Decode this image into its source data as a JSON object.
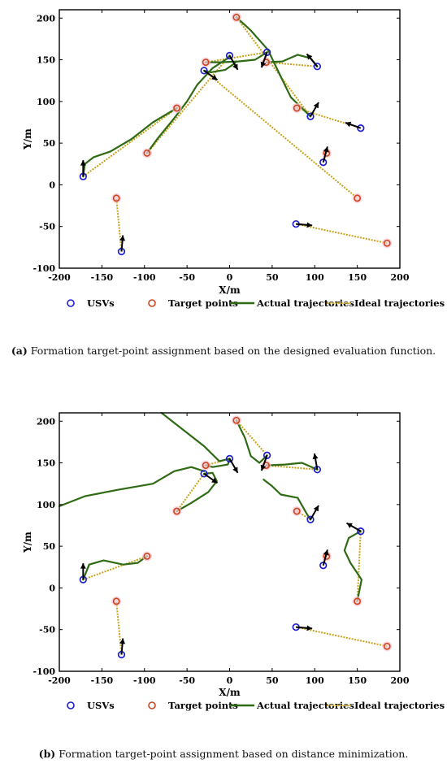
{
  "chart_data": [
    {
      "type": "scatter",
      "xlabel": "X/m",
      "ylabel": "Y/m",
      "xlim": [
        -200,
        200
      ],
      "ylim": [
        -100,
        210
      ],
      "xticks": [
        -200,
        -150,
        -100,
        -50,
        0,
        50,
        100,
        150,
        200
      ],
      "yticks": [
        -100,
        -50,
        0,
        50,
        100,
        150,
        200
      ],
      "legend": [
        "USVs",
        "Target points",
        "Actual trajectories",
        "Ideal trajectories"
      ],
      "caption_letter": "(a)",
      "caption_text": " Formation target-point assignment based on the designed evaluation function.",
      "usvs": [
        [
          -172,
          10
        ],
        [
          -127,
          -80
        ],
        [
          -30,
          137
        ],
        [
          0,
          155
        ],
        [
          44,
          159
        ],
        [
          95,
          82
        ],
        [
          103,
          142
        ],
        [
          110,
          27
        ],
        [
          154,
          68
        ],
        [
          78,
          -47
        ]
      ],
      "targets": [
        [
          -133,
          -16
        ],
        [
          -97,
          38
        ],
        [
          -62,
          92
        ],
        [
          -28,
          147
        ],
        [
          8,
          201
        ],
        [
          43,
          147
        ],
        [
          79,
          92
        ],
        [
          114,
          38
        ],
        [
          150,
          -16
        ],
        [
          185,
          -70
        ]
      ],
      "ideal_lines": [
        [
          [
            -172,
            10
          ],
          [
            -62,
            92
          ]
        ],
        [
          [
            -127,
            -80
          ],
          [
            -133,
            -16
          ]
        ],
        [
          [
            -97,
            38
          ],
          [
            0,
            155
          ]
        ],
        [
          [
            -28,
            147
          ],
          [
            44,
            159
          ]
        ],
        [
          [
            8,
            201
          ],
          [
            95,
            82
          ]
        ],
        [
          [
            -30,
            137
          ],
          [
            150,
            -16
          ]
        ],
        [
          [
            103,
            142
          ],
          [
            43,
            147
          ]
        ],
        [
          [
            154,
            68
          ],
          [
            79,
            92
          ]
        ],
        [
          [
            110,
            27
          ],
          [
            114,
            38
          ]
        ],
        [
          [
            78,
            -47
          ],
          [
            185,
            -70
          ]
        ]
      ],
      "actual_paths": [
        [
          [
            -172,
            10
          ],
          [
            -170,
            25
          ],
          [
            -160,
            33
          ],
          [
            -140,
            40
          ],
          [
            -115,
            55
          ],
          [
            -90,
            75
          ],
          [
            -62,
            92
          ]
        ],
        [
          [
            -97,
            38
          ],
          [
            -85,
            55
          ],
          [
            -65,
            80
          ],
          [
            -50,
            100
          ],
          [
            -38,
            120
          ],
          [
            -20,
            140
          ],
          [
            -2,
            152
          ],
          [
            0,
            155
          ]
        ],
        [
          [
            -28,
            147
          ],
          [
            -10,
            147
          ],
          [
            10,
            148
          ],
          [
            30,
            150
          ],
          [
            44,
            159
          ]
        ],
        [
          [
            8,
            201
          ],
          [
            25,
            185
          ],
          [
            45,
            162
          ],
          [
            60,
            130
          ],
          [
            72,
            105
          ],
          [
            95,
            82
          ]
        ],
        [
          [
            103,
            142
          ],
          [
            95,
            152
          ],
          [
            80,
            156
          ],
          [
            62,
            148
          ],
          [
            43,
            147
          ]
        ],
        [
          [
            -30,
            137
          ],
          [
            -22,
            135
          ],
          [
            -5,
            138
          ],
          [
            5,
            145
          ],
          [
            8,
            148
          ]
        ]
      ],
      "arrows": [
        [
          -172,
          10,
          90
        ],
        [
          -127,
          -80,
          85
        ],
        [
          -30,
          137,
          -35
        ],
        [
          0,
          155,
          -60
        ],
        [
          44,
          159,
          -110
        ],
        [
          95,
          82,
          60
        ],
        [
          103,
          142,
          130
        ],
        [
          110,
          27,
          75
        ],
        [
          154,
          68,
          160
        ],
        [
          78,
          -47,
          -5
        ]
      ]
    },
    {
      "type": "scatter",
      "xlabel": "X/m",
      "ylabel": "Y/m",
      "xlim": [
        -200,
        200
      ],
      "ylim": [
        -100,
        210
      ],
      "xticks": [
        -200,
        -150,
        -100,
        -50,
        0,
        50,
        100,
        150,
        200
      ],
      "yticks": [
        -100,
        -50,
        0,
        50,
        100,
        150,
        200
      ],
      "legend": [
        "USVs",
        "Target points",
        "Actual trajectories",
        "Ideal trajectories"
      ],
      "caption_letter": "(b)",
      "caption_text": " Formation target-point assignment based on distance minimization.",
      "usvs": [
        [
          -172,
          10
        ],
        [
          -127,
          -80
        ],
        [
          -30,
          137
        ],
        [
          0,
          155
        ],
        [
          44,
          159
        ],
        [
          95,
          82
        ],
        [
          103,
          142
        ],
        [
          110,
          27
        ],
        [
          154,
          68
        ],
        [
          78,
          -47
        ]
      ],
      "targets": [
        [
          -133,
          -16
        ],
        [
          -97,
          38
        ],
        [
          -62,
          92
        ],
        [
          -28,
          147
        ],
        [
          8,
          201
        ],
        [
          43,
          147
        ],
        [
          79,
          92
        ],
        [
          114,
          38
        ],
        [
          150,
          -16
        ],
        [
          185,
          -70
        ]
      ],
      "ideal_lines": [
        [
          [
            -172,
            10
          ],
          [
            -97,
            38
          ]
        ],
        [
          [
            -127,
            -80
          ],
          [
            -133,
            -16
          ]
        ],
        [
          [
            -30,
            137
          ],
          [
            -62,
            92
          ]
        ],
        [
          [
            0,
            155
          ],
          [
            -28,
            147
          ]
        ],
        [
          [
            8,
            201
          ],
          [
            44,
            159
          ]
        ],
        [
          [
            43,
            147
          ],
          [
            103,
            142
          ]
        ],
        [
          [
            95,
            82
          ],
          [
            79,
            92
          ]
        ],
        [
          [
            110,
            27
          ],
          [
            114,
            38
          ]
        ],
        [
          [
            154,
            68
          ],
          [
            150,
            -16
          ]
        ],
        [
          [
            78,
            -47
          ],
          [
            185,
            -70
          ]
        ]
      ],
      "actual_paths": [
        [
          [
            -172,
            10
          ],
          [
            -165,
            28
          ],
          [
            -148,
            33
          ],
          [
            -125,
            28
          ],
          [
            -108,
            30
          ],
          [
            -97,
            38
          ]
        ],
        [
          [
            -200,
            98
          ],
          [
            -170,
            110
          ],
          [
            -130,
            118
          ],
          [
            -90,
            125
          ],
          [
            -65,
            140
          ],
          [
            -45,
            145
          ],
          [
            -30,
            140
          ]
        ],
        [
          [
            -80,
            210
          ],
          [
            -55,
            190
          ],
          [
            -30,
            170
          ],
          [
            -12,
            152
          ],
          [
            0,
            155
          ]
        ],
        [
          [
            0,
            155
          ],
          [
            -2,
            148
          ],
          [
            -20,
            145
          ],
          [
            -28,
            147
          ]
        ],
        [
          [
            -30,
            137
          ],
          [
            -20,
            138
          ],
          [
            -15,
            128
          ],
          [
            -25,
            115
          ],
          [
            -45,
            102
          ],
          [
            -62,
            92
          ]
        ],
        [
          [
            8,
            201
          ],
          [
            18,
            180
          ],
          [
            25,
            158
          ],
          [
            35,
            150
          ],
          [
            44,
            159
          ]
        ],
        [
          [
            40,
            130
          ],
          [
            50,
            122
          ],
          [
            60,
            112
          ],
          [
            80,
            108
          ],
          [
            90,
            90
          ],
          [
            95,
            82
          ]
        ],
        [
          [
            43,
            147
          ],
          [
            65,
            148
          ],
          [
            85,
            150
          ],
          [
            103,
            142
          ]
        ],
        [
          [
            154,
            68
          ],
          [
            140,
            60
          ],
          [
            135,
            45
          ],
          [
            142,
            30
          ],
          [
            155,
            10
          ],
          [
            150,
            -16
          ]
        ]
      ],
      "arrows": [
        [
          -172,
          10,
          90
        ],
        [
          -127,
          -80,
          85
        ],
        [
          -30,
          137,
          -35
        ],
        [
          0,
          155,
          -60
        ],
        [
          44,
          159,
          -110
        ],
        [
          95,
          82,
          60
        ],
        [
          103,
          142,
          100
        ],
        [
          110,
          27,
          75
        ],
        [
          154,
          68,
          150
        ],
        [
          78,
          -47,
          -5
        ]
      ]
    }
  ]
}
